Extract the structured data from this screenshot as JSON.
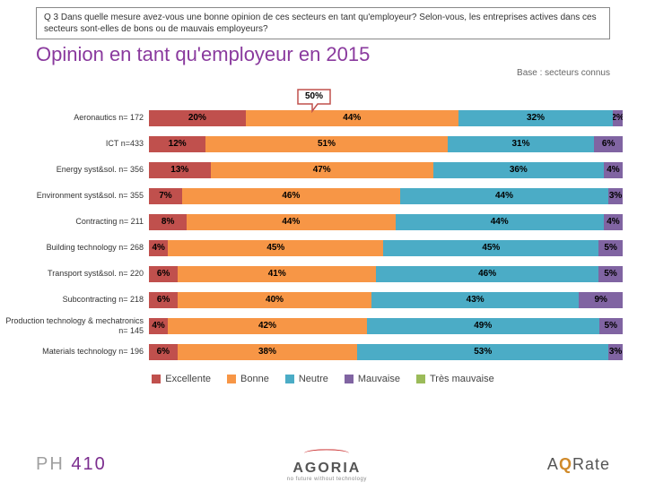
{
  "question": "Q 3 Dans quelle mesure avez-vous une bonne opinion de ces secteurs en tant qu'employeur? Selon-vous, les entreprises actives dans ces secteurs sont-elles de bons ou de mauvais employeurs?",
  "title": "Opinion en tant qu'employeur en 2015",
  "base_note": "Base : secteurs connus",
  "callout": "50%",
  "colors": {
    "excellente": "#c0504d",
    "bonne": "#f79646",
    "neutre": "#4bacc6",
    "mauvaise": "#8064a2",
    "tres_mauvaise": "#9bbb59"
  },
  "legend": {
    "excellente": "Excellente",
    "bonne": "Bonne",
    "neutre": "Neutre",
    "mauvaise": "Mauvaise",
    "tres_mauvaise": "Très mauvaise"
  },
  "rows": [
    {
      "label": "Aeronautics n= 172",
      "segs": [
        {
          "v": 20,
          "t": "20%"
        },
        {
          "v": 44,
          "t": "44%"
        },
        {
          "v": 32,
          "t": "32%"
        },
        {
          "v": 2,
          "t": "2%"
        },
        {
          "v": 0,
          "t": ""
        }
      ]
    },
    {
      "label": "ICT n=433",
      "segs": [
        {
          "v": 12,
          "t": "12%"
        },
        {
          "v": 51,
          "t": "51%"
        },
        {
          "v": 31,
          "t": "31%"
        },
        {
          "v": 6,
          "t": "6%"
        },
        {
          "v": 0,
          "t": ""
        }
      ]
    },
    {
      "label": "Energy syst&sol. n= 356",
      "segs": [
        {
          "v": 13,
          "t": "13%"
        },
        {
          "v": 47,
          "t": "47%"
        },
        {
          "v": 36,
          "t": "36%"
        },
        {
          "v": 4,
          "t": "4%"
        },
        {
          "v": 0,
          "t": ""
        }
      ]
    },
    {
      "label": "Environment syst&sol. n= 355",
      "segs": [
        {
          "v": 7,
          "t": "7%"
        },
        {
          "v": 46,
          "t": "46%"
        },
        {
          "v": 44,
          "t": "44%"
        },
        {
          "v": 3,
          "t": "3%"
        },
        {
          "v": 0,
          "t": ""
        }
      ]
    },
    {
      "label": "Contracting n= 211",
      "segs": [
        {
          "v": 8,
          "t": "8%"
        },
        {
          "v": 44,
          "t": "44%"
        },
        {
          "v": 44,
          "t": "44%"
        },
        {
          "v": 4,
          "t": "4%"
        },
        {
          "v": 0,
          "t": ""
        }
      ]
    },
    {
      "label": "Building technology n= 268",
      "segs": [
        {
          "v": 4,
          "t": "4%"
        },
        {
          "v": 45,
          "t": "45%"
        },
        {
          "v": 45,
          "t": "45%"
        },
        {
          "v": 5,
          "t": "5%"
        },
        {
          "v": 0,
          "t": ""
        }
      ]
    },
    {
      "label": "Transport syst&sol. n= 220",
      "segs": [
        {
          "v": 6,
          "t": "6%"
        },
        {
          "v": 41,
          "t": "41%"
        },
        {
          "v": 46,
          "t": "46%"
        },
        {
          "v": 5,
          "t": "5%"
        },
        {
          "v": 0,
          "t": ""
        }
      ]
    },
    {
      "label": "Subcontracting n= 218",
      "segs": [
        {
          "v": 6,
          "t": "6%"
        },
        {
          "v": 40,
          "t": "40%"
        },
        {
          "v": 43,
          "t": "43%"
        },
        {
          "v": 9,
          "t": "9%"
        },
        {
          "v": 0,
          "t": ""
        }
      ]
    },
    {
      "label": "Production technology & mechatronics n= 145",
      "segs": [
        {
          "v": 4,
          "t": "4%"
        },
        {
          "v": 42,
          "t": "42%"
        },
        {
          "v": 49,
          "t": "49%"
        },
        {
          "v": 5,
          "t": "5%"
        },
        {
          "v": 0,
          "t": ""
        }
      ]
    },
    {
      "label": "Materials technology n= 196",
      "segs": [
        {
          "v": 6,
          "t": "6%"
        },
        {
          "v": 38,
          "t": "38%"
        },
        {
          "v": 53,
          "t": "53%"
        },
        {
          "v": 3,
          "t": "3%"
        },
        {
          "v": 0,
          "t": ""
        }
      ]
    }
  ],
  "logos": {
    "ph": {
      "text": "PH",
      "num": "410"
    },
    "agoria": {
      "name": "AGORIA",
      "tag": "no future without technology"
    },
    "aqrate": {
      "pre": "A",
      "q": "Q",
      "post": "Rate"
    }
  }
}
